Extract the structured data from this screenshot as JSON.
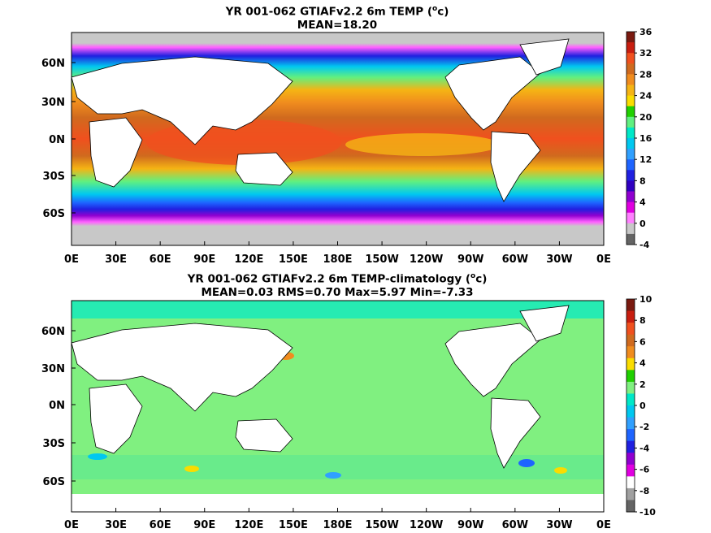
{
  "x_axis_labels": [
    "0E",
    "30E",
    "60E",
    "90E",
    "120E",
    "150E",
    "180E",
    "150W",
    "120W",
    "90W",
    "60W",
    "30W",
    "0E"
  ],
  "y_axis_labels": [
    "60N",
    "30N",
    "0N",
    "30S",
    "60S"
  ],
  "panels": [
    {
      "title_line1": "YR 001-062 GTIAFv2.2 6m TEMP (",
      "title_sup": "o",
      "title_unit": "c)",
      "title_line2": "MEAN=18.20",
      "colorbar_labels": [
        "36",
        "32",
        "28",
        "24",
        "20",
        "16",
        "12",
        "8",
        "4",
        "0",
        "-4"
      ],
      "colorbar_colors": [
        "#7a1a10",
        "#c81e10",
        "#f0501e",
        "#d06a1e",
        "#f08c1e",
        "#f5b414",
        "#fadc00",
        "#20d000",
        "#60f080",
        "#00e8c8",
        "#00c8f0",
        "#30a0ff",
        "#1e64ff",
        "#2020e0",
        "#3000c0",
        "#9000d0",
        "#e000e0",
        "#ff80ff",
        "#c8c8c8",
        "#646464"
      ]
    },
    {
      "title_line1": "YR 001-062 GTIAFv2.2 6m TEMP-climatology (",
      "title_sup": "o",
      "title_unit": "c)",
      "title_line2": "MEAN=0.03   RMS=0.70   Max=5.97   Min=-7.33",
      "colorbar_labels": [
        "10",
        "8",
        "6",
        "4",
        "2",
        "0",
        "-2",
        "-4",
        "-6",
        "-8",
        "-10"
      ],
      "colorbar_colors": [
        "#7a1a10",
        "#c81e10",
        "#f0501e",
        "#d06a1e",
        "#f08c1e",
        "#fadc00",
        "#20d000",
        "#80f080",
        "#00e8c8",
        "#00c8f0",
        "#30a0ff",
        "#1e64ff",
        "#2020e0",
        "#9000d0",
        "#e000e0",
        "#ffffff",
        "#a0a0a0",
        "#646464"
      ]
    }
  ]
}
